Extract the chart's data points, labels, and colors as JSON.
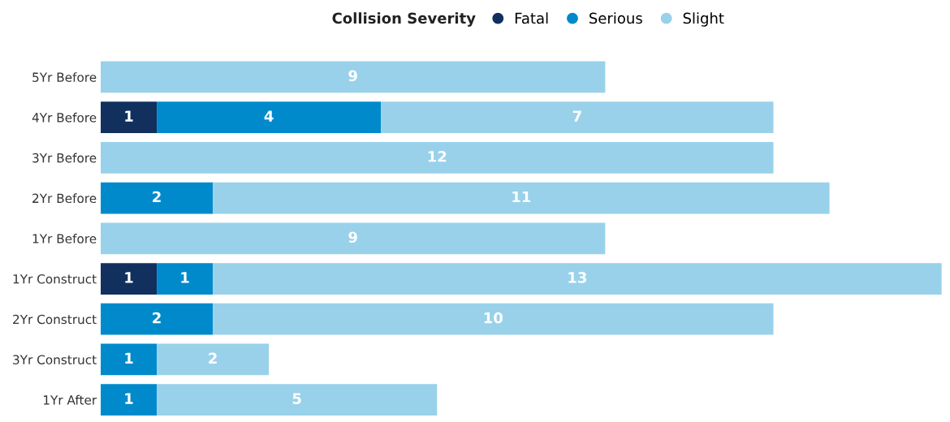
{
  "chart_data": {
    "type": "bar",
    "orientation": "horizontal",
    "stacked": true,
    "data_labels": true,
    "legend": "top",
    "legend_title": "Collision Severity",
    "grid": false,
    "categories": [
      "5Yr Before",
      "4Yr Before",
      "3Yr Before",
      "2Yr Before",
      "1Yr Before",
      "1Yr Construct",
      "2Yr Construct",
      "3Yr Construct",
      "1Yr After"
    ],
    "series": [
      {
        "name": "Fatal",
        "color": "#12305e",
        "values": [
          null,
          1,
          null,
          null,
          null,
          1,
          null,
          null,
          null
        ]
      },
      {
        "name": "Serious",
        "color": "#008acb",
        "values": [
          null,
          4,
          null,
          2,
          null,
          1,
          2,
          1,
          1
        ]
      },
      {
        "name": "Slight",
        "color": "#99d1ea",
        "values": [
          9,
          7,
          12,
          11,
          9,
          13,
          10,
          2,
          5
        ]
      }
    ]
  }
}
